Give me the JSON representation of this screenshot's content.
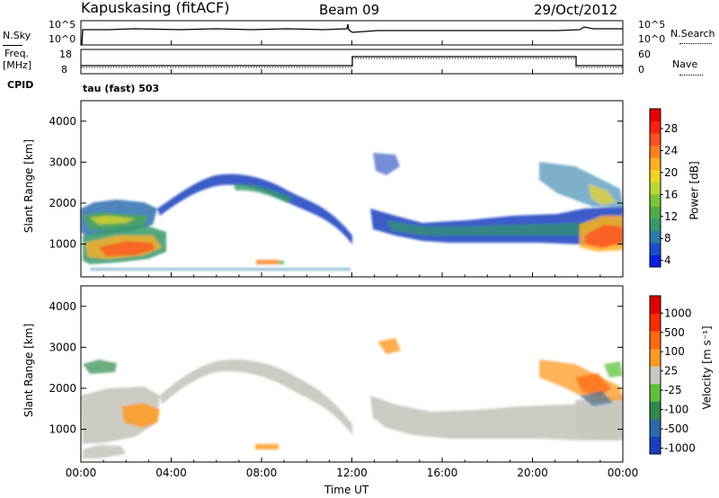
{
  "header": {
    "station": "Kapuskasing (fitACF)",
    "beam": "Beam 09",
    "date": "29/Oct/2012"
  },
  "status_panels": {
    "nsky_label": "N.Sky",
    "nsky_ticks": [
      "10^5",
      "10^0"
    ],
    "nsearch_label": "N.Search",
    "nsearch_ticks": [
      "10^5",
      "10^0"
    ],
    "freq_label_1": "Freq.",
    "freq_label_2": "[MHz]",
    "freq_ticks": [
      "18",
      "8"
    ],
    "nave_label": "Nave",
    "nave_ticks": [
      "60",
      "0"
    ],
    "cpid_label": "CPID",
    "cpid_value": "tau (fast) 503"
  },
  "power_colorbar": {
    "label": "Power [dB]",
    "ticks": [
      "28",
      "24",
      "20",
      "16",
      "12",
      "8",
      "4"
    ],
    "colors": [
      "#0a1ee6",
      "#1a4fc8",
      "#2a7da8",
      "#35996a",
      "#4cad48",
      "#7cc43a",
      "#b9d832",
      "#f0d820",
      "#ffb020",
      "#ff8020",
      "#ff5020",
      "#ff2010",
      "#e80000"
    ]
  },
  "velocity_colorbar": {
    "label": "Velocity [m s⁻¹]",
    "ticks": [
      "1000",
      "500",
      "100",
      "25",
      "-25",
      "-100",
      "-500",
      "-1000"
    ],
    "colors": [
      "#1a3fbf",
      "#2a6aa8",
      "#2f8a4c",
      "#5cc23a",
      "#c8c8c0",
      "#ff9a20",
      "#ff6a10",
      "#ff2a00",
      "#e00000"
    ]
  },
  "chart_data": {
    "type": "heatmap",
    "panels": [
      {
        "name": "power",
        "ylabel": "Slant Range [km]",
        "ylim": [
          200,
          4500
        ],
        "yticks": [
          1000,
          2000,
          3000,
          4000
        ],
        "features": [
          {
            "x": [
              0.0,
              4.0
            ],
            "y": [
              1400,
              1900
            ],
            "level": "medium"
          },
          {
            "x": [
              0.5,
              4.0
            ],
            "y": [
              600,
              1400
            ],
            "level": "high"
          },
          {
            "x": [
              3.5,
              8.5
            ],
            "y": [
              2100,
              2750
            ],
            "level": "low"
          },
          {
            "x": [
              8.5,
              12.0
            ],
            "y": [
              1200,
              2100
            ],
            "level": "low"
          },
          {
            "x": [
              12.5,
              22.0
            ],
            "y": [
              1100,
              1800
            ],
            "level": "low-medium"
          },
          {
            "x": [
              22.0,
              24.0
            ],
            "y": [
              800,
              2400
            ],
            "level": "high"
          }
        ]
      },
      {
        "name": "velocity",
        "ylabel": "Slant Range [km]",
        "ylim": [
          200,
          4500
        ],
        "yticks": [
          1000,
          2000,
          3000,
          4000
        ],
        "features": [
          {
            "x": [
              0.0,
              4.0
            ],
            "y": [
              500,
              1900
            ],
            "level": "-25 to 25"
          },
          {
            "x": [
              2.0,
              4.0
            ],
            "y": [
              900,
              1500
            ],
            "level": "-100 to -500"
          },
          {
            "x": [
              4.0,
              12.0
            ],
            "y": [
              1200,
              2750
            ],
            "level": "-25 to 25"
          },
          {
            "x": [
              12.5,
              22.0
            ],
            "y": [
              1000,
              2000
            ],
            "level": "-25 to 25"
          },
          {
            "x": [
              13.0,
              14.0
            ],
            "y": [
              2800,
              3300
            ],
            "level": "-100 to -500"
          },
          {
            "x": [
              20.0,
              24.0
            ],
            "y": [
              1400,
              2800
            ],
            "level": "-100 to -500"
          }
        ]
      }
    ],
    "xlabel": "Time UT",
    "xticks": [
      "00:00",
      "04:00",
      "08:00",
      "12:00",
      "16:00",
      "20:00",
      "00:00"
    ],
    "xlim": [
      0,
      24
    ]
  }
}
